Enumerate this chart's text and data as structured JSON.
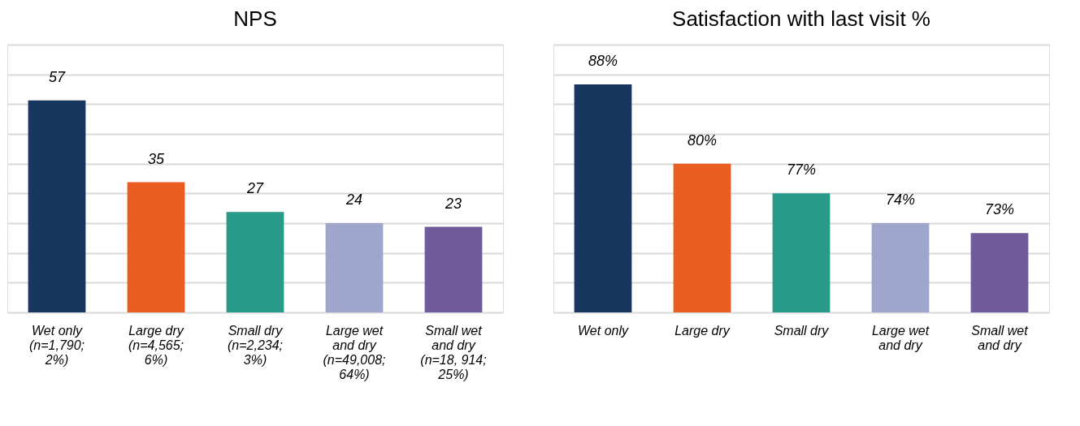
{
  "chart_data": [
    {
      "type": "bar",
      "title": "NPS",
      "categories": [
        "Wet only (n=1,790; 2%)",
        "Large dry (n=4,565; 6%)",
        "Small dry (n=2,234; 3%)",
        "Large wet and dry (n=49,008; 64%)",
        "Small wet and dry (n=18, 914; 25%)"
      ],
      "values": [
        57,
        35,
        27,
        24,
        23
      ],
      "colors": [
        "#17375e",
        "#e95e20",
        "#279a8a",
        "#9ea7cb",
        "#6f5b9c"
      ],
      "data_labels": true,
      "ylim": [
        0,
        72
      ],
      "yticks": [
        {
          "value": 0,
          "label": null
        },
        {
          "value": 8,
          "label": null
        },
        {
          "value": 16,
          "label": null
        },
        {
          "value": 24,
          "label": null
        },
        {
          "value": 32,
          "label": null
        },
        {
          "value": 40,
          "label": null
        },
        {
          "value": 48,
          "label": null
        },
        {
          "value": 56,
          "label": null
        },
        {
          "value": 64,
          "label": null
        },
        {
          "value": 72,
          "label": null
        }
      ],
      "grid": "y",
      "tick_labels": "x"
    },
    {
      "type": "bar",
      "title": "Satisfaction with last visit %",
      "categories": [
        "Wet only",
        "Large dry",
        "Small dry",
        "Large wet and dry",
        "Small wet and dry"
      ],
      "values": [
        88,
        80,
        77,
        74,
        73
      ],
      "value_labels": [
        "88%",
        "80%",
        "77%",
        "74%",
        "73%"
      ],
      "colors": [
        "#17375e",
        "#e95e20",
        "#279a8a",
        "#9ea7cb",
        "#6f5b9c"
      ],
      "ylim": [
        65,
        92
      ],
      "yticks": [
        {
          "value": 65,
          "label": null
        },
        {
          "value": 68,
          "label": null
        },
        {
          "value": 71,
          "label": null
        },
        {
          "value": 74,
          "label": null
        },
        {
          "value": 77,
          "label": null
        },
        {
          "value": 80,
          "label": null
        },
        {
          "value": 83,
          "label": null
        },
        {
          "value": 86,
          "label": null
        },
        {
          "value": 89,
          "label": null
        },
        {
          "value": 92,
          "label": null
        }
      ],
      "grid": "y",
      "tick_labels": "x"
    }
  ]
}
